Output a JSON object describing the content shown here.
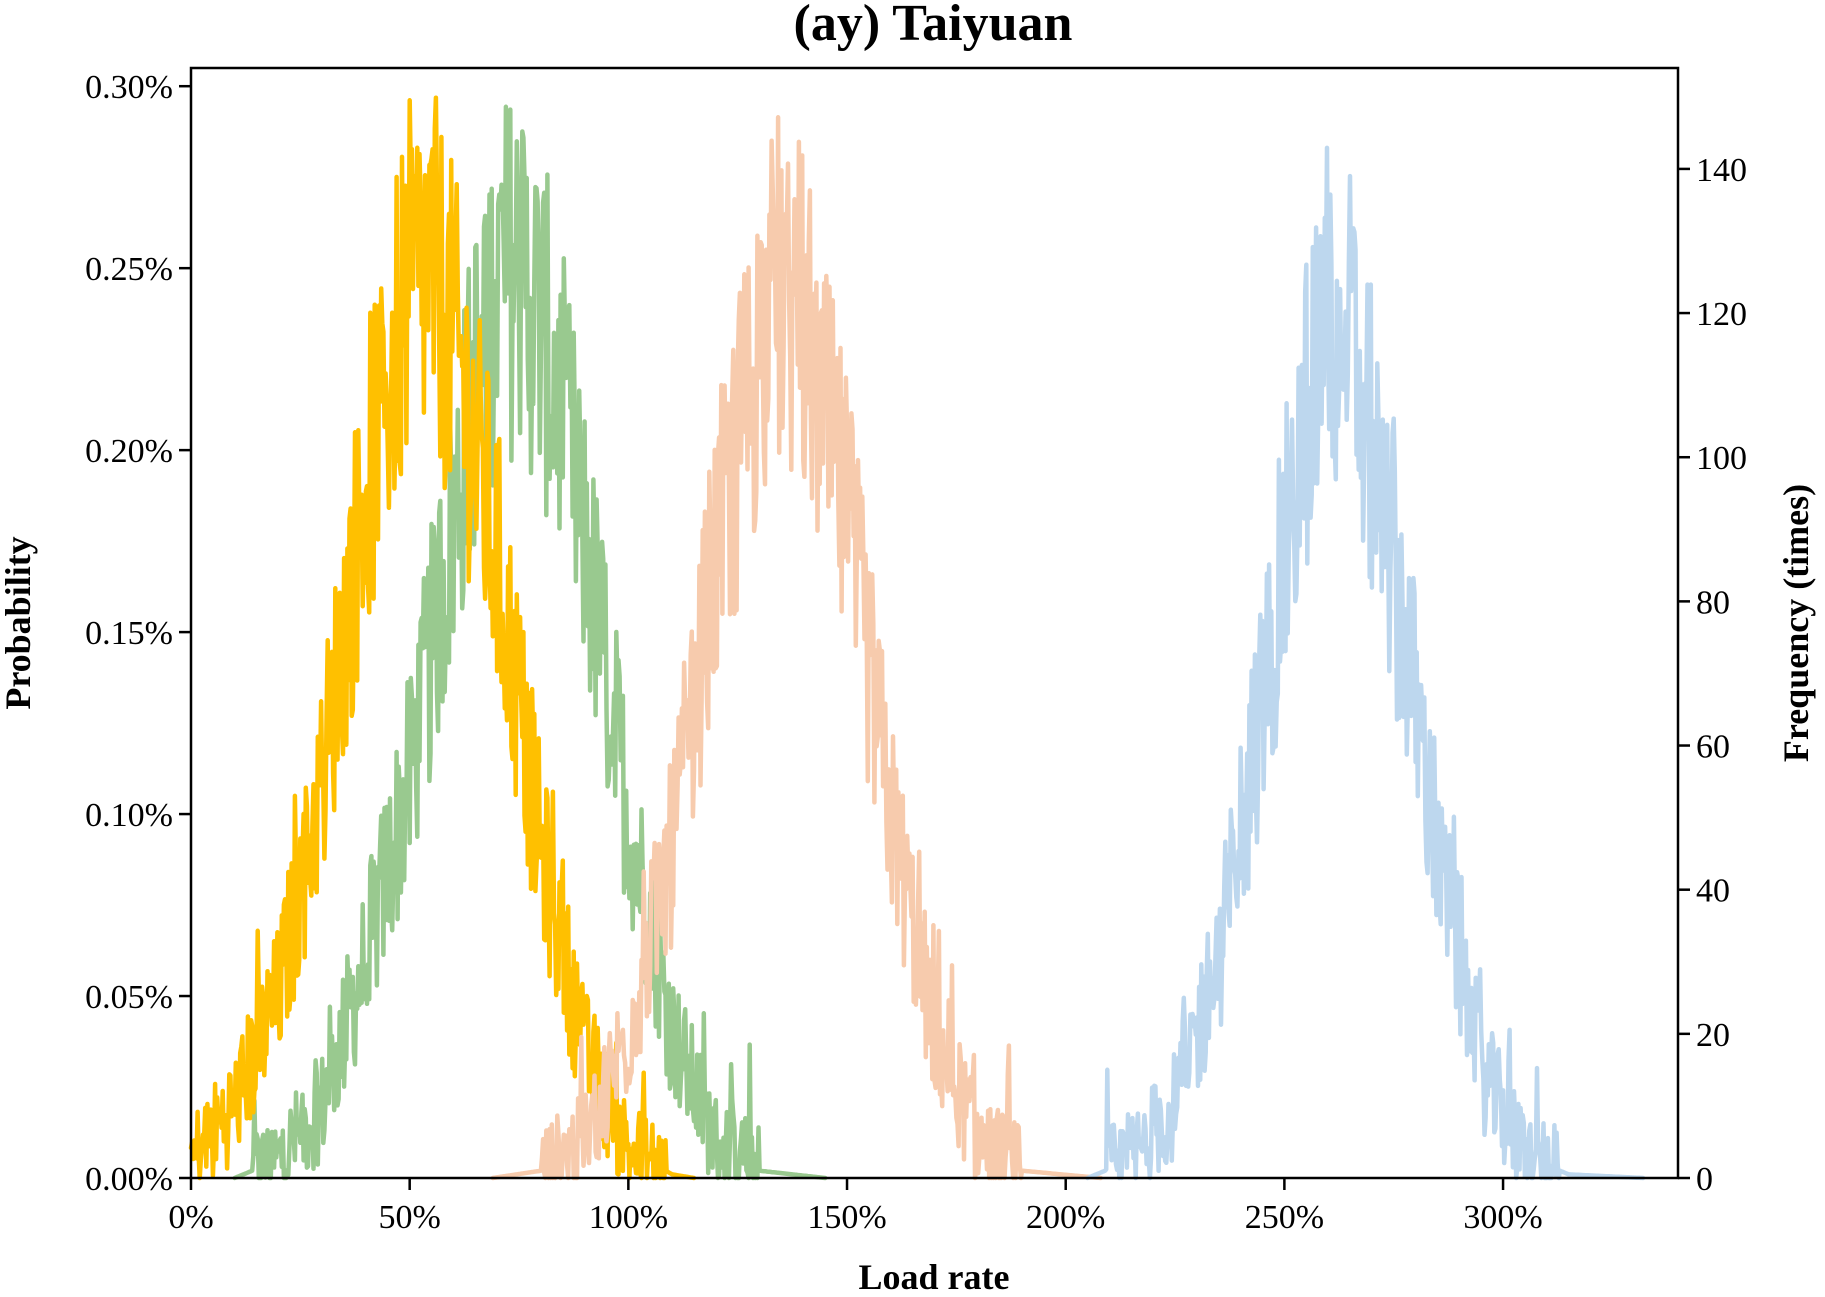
{
  "chart_data": {
    "type": "line",
    "title": "(ay) Taiyuan",
    "xlabel": "Load rate",
    "ylabel_left": "Probability",
    "ylabel_right": "Frequency (times)",
    "xlim": [
      0,
      340
    ],
    "ylim_left": [
      0,
      0.305
    ],
    "ylim_right": [
      0,
      154
    ],
    "x_ticks": [
      {
        "value": 0,
        "label": "0%"
      },
      {
        "value": 50,
        "label": "50%"
      },
      {
        "value": 100,
        "label": "100%"
      },
      {
        "value": 150,
        "label": "150%"
      },
      {
        "value": 200,
        "label": "200%"
      },
      {
        "value": 250,
        "label": "250%"
      },
      {
        "value": 300,
        "label": "300%"
      }
    ],
    "y_left_ticks": [
      {
        "value": 0,
        "label": "0.00%"
      },
      {
        "value": 0.05,
        "label": "0.05%"
      },
      {
        "value": 0.1,
        "label": "0.10%"
      },
      {
        "value": 0.15,
        "label": "0.15%"
      },
      {
        "value": 0.2,
        "label": "0.20%"
      },
      {
        "value": 0.25,
        "label": "0.25%"
      },
      {
        "value": 0.3,
        "label": "0.30%"
      }
    ],
    "y_right_ticks": [
      {
        "value": 0,
        "label": "0"
      },
      {
        "value": 20,
        "label": "20"
      },
      {
        "value": 40,
        "label": "40"
      },
      {
        "value": 60,
        "label": "60"
      },
      {
        "value": 80,
        "label": "80"
      },
      {
        "value": 100,
        "label": "100"
      },
      {
        "value": 120,
        "label": "120"
      },
      {
        "value": 140,
        "label": "140"
      }
    ],
    "grid": false,
    "legend": "none",
    "series": [
      {
        "color": "#99c98f",
        "x": [
          10,
          20,
          30,
          40,
          50,
          60,
          65,
          70,
          75,
          80,
          85,
          90,
          100,
          110,
          120,
          130,
          145
        ],
        "y": [
          0.0,
          0.005,
          0.02,
          0.06,
          0.11,
          0.18,
          0.22,
          0.245,
          0.25,
          0.235,
          0.21,
          0.175,
          0.1,
          0.04,
          0.01,
          0.002,
          0.0
        ]
      },
      {
        "color": "#ffc000",
        "x": [
          0,
          10,
          20,
          30,
          40,
          45,
          50,
          55,
          60,
          65,
          70,
          80,
          90,
          100,
          110,
          115
        ],
        "y": [
          0.005,
          0.02,
          0.05,
          0.11,
          0.19,
          0.22,
          0.245,
          0.25,
          0.23,
          0.2,
          0.17,
          0.09,
          0.035,
          0.008,
          0.001,
          0.0
        ]
      },
      {
        "color": "#f7cbad",
        "x": [
          69,
          80,
          90,
          100,
          110,
          120,
          130,
          135,
          140,
          150,
          160,
          170,
          180,
          190,
          208
        ],
        "y": [
          0.0,
          0.002,
          0.01,
          0.04,
          0.09,
          0.17,
          0.23,
          0.245,
          0.235,
          0.18,
          0.1,
          0.04,
          0.01,
          0.002,
          0.0
        ]
      },
      {
        "color": "#bdd7ee",
        "x": [
          205,
          215,
          225,
          235,
          245,
          255,
          260,
          265,
          275,
          285,
          295,
          305,
          315,
          332
        ],
        "y": [
          0.0,
          0.005,
          0.02,
          0.06,
          0.13,
          0.21,
          0.24,
          0.23,
          0.17,
          0.09,
          0.03,
          0.006,
          0.001,
          0.0
        ]
      }
    ]
  }
}
